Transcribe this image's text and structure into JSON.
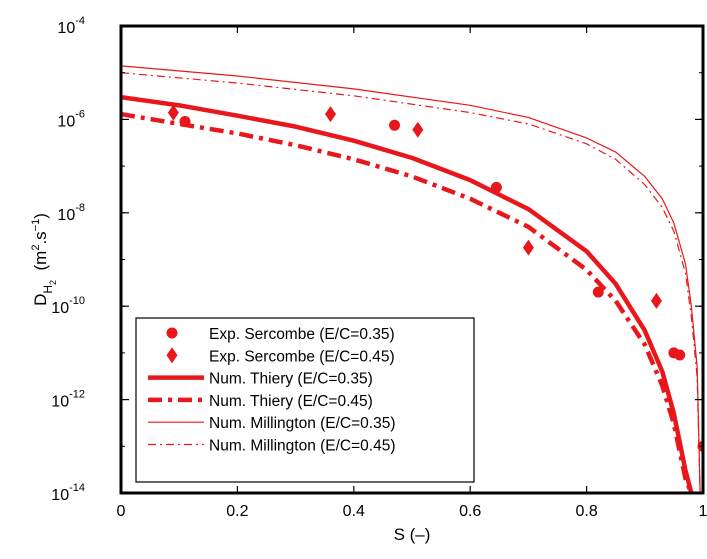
{
  "chart_data": {
    "type": "scatter",
    "xlabel": "S (–)",
    "ylabel": {
      "base": "D",
      "subscript": "H",
      "subsubscript": "2",
      "units_prefix": "(m",
      "units_exp1": "2",
      "units_mid": ".s",
      "units_exp2": "−1",
      "units_suffix": ")"
    },
    "xlim": [
      0,
      1
    ],
    "ylim": [
      1e-14,
      0.0001
    ],
    "yscale": "log",
    "grid": false,
    "legend_position": "bottom-left",
    "x_ticks": [
      {
        "value": 0,
        "label": "0"
      },
      {
        "value": 0.2,
        "label": "0.2"
      },
      {
        "value": 0.4,
        "label": "0.4"
      },
      {
        "value": 0.6,
        "label": "0.6"
      },
      {
        "value": 0.8,
        "label": "0.8"
      },
      {
        "value": 1,
        "label": "1"
      }
    ],
    "y_ticks": [
      {
        "exp": -14,
        "base": "10",
        "sup": "-14"
      },
      {
        "exp": -12,
        "base": "10",
        "sup": "-12"
      },
      {
        "exp": -10,
        "base": "10",
        "sup": "-10"
      },
      {
        "exp": -8,
        "base": "10",
        "sup": "-8"
      },
      {
        "exp": -6,
        "base": "10",
        "sup": "-6"
      },
      {
        "exp": -4,
        "base": "10",
        "sup": "-4"
      }
    ],
    "series": [
      {
        "name": "Exp. Sercombe (E/C=0.35)",
        "kind": "marker",
        "marker": "circle",
        "color": "#e8171b",
        "points": [
          {
            "x": 0.11,
            "y": 9e-07
          },
          {
            "x": 0.47,
            "y": 7.5e-07
          },
          {
            "x": 0.645,
            "y": 3.5e-08
          },
          {
            "x": 0.82,
            "y": 2e-10
          },
          {
            "x": 0.96,
            "y": 9e-12
          },
          {
            "x": 0.95,
            "y": 1e-11
          },
          {
            "x": 1.0,
            "y": 1e-13
          }
        ]
      },
      {
        "name": "Exp. Sercombe (E/C=0.45)",
        "kind": "marker",
        "marker": "diamond",
        "color": "#e8171b",
        "points": [
          {
            "x": 0.09,
            "y": 1.4e-06
          },
          {
            "x": 0.36,
            "y": 1.3e-06
          },
          {
            "x": 0.51,
            "y": 6e-07
          },
          {
            "x": 0.7,
            "y": 1.8e-09
          },
          {
            "x": 0.92,
            "y": 1.3e-10
          }
        ]
      },
      {
        "name": "Num. Thiery (E/C=0.35)",
        "kind": "line",
        "style": "solid",
        "width": 4.5,
        "color": "#e8171b",
        "points": [
          {
            "x": 0.0,
            "y": 3e-06
          },
          {
            "x": 0.1,
            "y": 2e-06
          },
          {
            "x": 0.2,
            "y": 1.2e-06
          },
          {
            "x": 0.3,
            "y": 7e-07
          },
          {
            "x": 0.4,
            "y": 3.5e-07
          },
          {
            "x": 0.5,
            "y": 1.5e-07
          },
          {
            "x": 0.6,
            "y": 5e-08
          },
          {
            "x": 0.7,
            "y": 1.2e-08
          },
          {
            "x": 0.8,
            "y": 1.5e-09
          },
          {
            "x": 0.85,
            "y": 3e-10
          },
          {
            "x": 0.9,
            "y": 3e-11
          },
          {
            "x": 0.93,
            "y": 4e-12
          },
          {
            "x": 0.95,
            "y": 5e-13
          },
          {
            "x": 0.97,
            "y": 3e-14
          },
          {
            "x": 0.98,
            "y": 1e-14
          }
        ]
      },
      {
        "name": "Num. Thiery (E/C=0.45)",
        "kind": "line",
        "style": "dashdot",
        "width": 4.5,
        "color": "#e8171b",
        "points": [
          {
            "x": 0.0,
            "y": 1.3e-06
          },
          {
            "x": 0.1,
            "y": 8e-07
          },
          {
            "x": 0.2,
            "y": 5e-07
          },
          {
            "x": 0.3,
            "y": 2.8e-07
          },
          {
            "x": 0.4,
            "y": 1.4e-07
          },
          {
            "x": 0.5,
            "y": 6e-08
          },
          {
            "x": 0.6,
            "y": 2e-08
          },
          {
            "x": 0.7,
            "y": 5e-09
          },
          {
            "x": 0.8,
            "y": 6e-10
          },
          {
            "x": 0.85,
            "y": 1.3e-10
          },
          {
            "x": 0.9,
            "y": 1.5e-11
          },
          {
            "x": 0.93,
            "y": 2e-12
          },
          {
            "x": 0.95,
            "y": 3e-13
          },
          {
            "x": 0.97,
            "y": 2e-14
          },
          {
            "x": 0.98,
            "y": 1e-14
          }
        ]
      },
      {
        "name": "Num. Millington (E/C=0.35)",
        "kind": "line",
        "style": "solid",
        "width": 1.2,
        "color": "#e8171b",
        "points": [
          {
            "x": 0.0,
            "y": 1.4e-05
          },
          {
            "x": 0.2,
            "y": 8.5e-06
          },
          {
            "x": 0.4,
            "y": 4.5e-06
          },
          {
            "x": 0.6,
            "y": 2e-06
          },
          {
            "x": 0.7,
            "y": 1.1e-06
          },
          {
            "x": 0.8,
            "y": 4e-07
          },
          {
            "x": 0.85,
            "y": 2e-07
          },
          {
            "x": 0.9,
            "y": 6e-08
          },
          {
            "x": 0.93,
            "y": 2e-08
          },
          {
            "x": 0.95,
            "y": 6e-09
          },
          {
            "x": 0.97,
            "y": 8e-10
          },
          {
            "x": 0.98,
            "y": 1e-10
          },
          {
            "x": 0.99,
            "y": 5e-12
          },
          {
            "x": 0.995,
            "y": 1e-14
          }
        ]
      },
      {
        "name": "Num. Millington (E/C=0.45)",
        "kind": "line",
        "style": "dashdot",
        "width": 1.2,
        "color": "#e8171b",
        "points": [
          {
            "x": 0.0,
            "y": 1e-05
          },
          {
            "x": 0.2,
            "y": 6e-06
          },
          {
            "x": 0.4,
            "y": 3.2e-06
          },
          {
            "x": 0.6,
            "y": 1.4e-06
          },
          {
            "x": 0.7,
            "y": 8e-07
          },
          {
            "x": 0.8,
            "y": 3e-07
          },
          {
            "x": 0.85,
            "y": 1.4e-07
          },
          {
            "x": 0.9,
            "y": 4e-08
          },
          {
            "x": 0.93,
            "y": 1.3e-08
          },
          {
            "x": 0.95,
            "y": 4e-09
          },
          {
            "x": 0.97,
            "y": 5e-10
          },
          {
            "x": 0.98,
            "y": 6e-11
          },
          {
            "x": 0.99,
            "y": 3e-12
          },
          {
            "x": 0.995,
            "y": 1e-14
          }
        ]
      }
    ]
  }
}
